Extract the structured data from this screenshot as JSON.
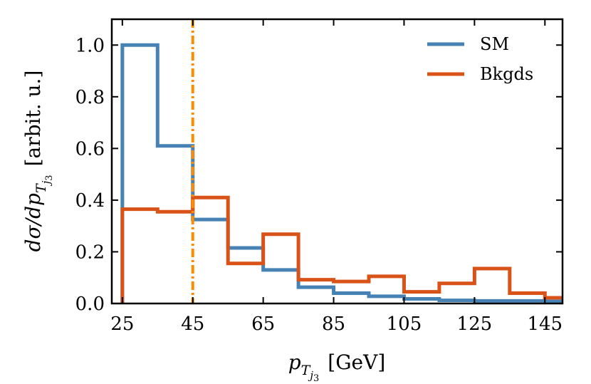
{
  "chart_data": {
    "type": "histogram-step",
    "xlabel_parts": {
      "symbol": "p",
      "sub1": "T",
      "sub2": "j",
      "sub3": "3",
      "unit": "[GeV]"
    },
    "ylabel_parts": {
      "prefix": "dσ/dp",
      "sub1": "T",
      "sub2": "j",
      "sub3": "3",
      "unit": "[arbit. u.]"
    },
    "xlim": [
      22,
      150
    ],
    "ylim": [
      0,
      1.1
    ],
    "xticks": [
      25,
      45,
      65,
      85,
      105,
      125,
      145
    ],
    "xtick_labels": [
      "25",
      "45",
      "65",
      "85",
      "105",
      "125",
      "145"
    ],
    "yticks": [
      0.0,
      0.2,
      0.4,
      0.6,
      0.8,
      1.0
    ],
    "ytick_labels": [
      "0.0",
      "0.2",
      "0.4",
      "0.6",
      "0.8",
      "1.0"
    ],
    "bin_edges": [
      25,
      35,
      45,
      55,
      65,
      75,
      85,
      95,
      105,
      115,
      125,
      135,
      145,
      155
    ],
    "series": [
      {
        "name": "SM",
        "color": "#4682b4",
        "values": [
          1.0,
          0.61,
          0.325,
          0.215,
          0.13,
          0.063,
          0.04,
          0.028,
          0.018,
          0.012,
          0.01,
          0.01,
          0.008
        ]
      },
      {
        "name": "Bkgds",
        "color": "#d95319",
        "values": [
          0.365,
          0.355,
          0.41,
          0.155,
          0.268,
          0.092,
          0.085,
          0.105,
          0.045,
          0.078,
          0.135,
          0.04,
          0.022
        ]
      }
    ],
    "vline": {
      "x": 45,
      "color": "#ff8c00",
      "style": "dash-dot"
    },
    "legend_position": "top-right",
    "grid": false
  }
}
